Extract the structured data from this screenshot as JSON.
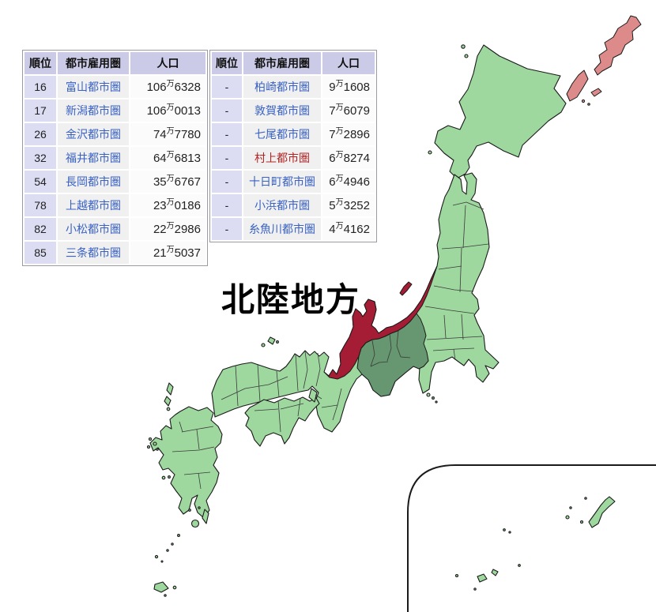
{
  "theme": {
    "japan-green": "#9ed89f",
    "chubu-green": "#669770",
    "hokuriku-red": "#a51c35",
    "disputed-pink": "#dd8a8a",
    "coast": "#1a1a1a",
    "pref-line": "#3a3a3a",
    "table-header-bg": "#cbcbe8",
    "table-rank-bg": "#dcdcf2",
    "table-name-bg": "#f0f0f0",
    "table-pop-bg": "#fbfbfb",
    "table-border": "#9a9aa5",
    "link-blue": "#3a62c4",
    "link-red": "#b32424",
    "text-dark": "#222222",
    "title-color": "#000000"
  },
  "title": {
    "text": "北陸地方"
  },
  "tables": {
    "headers": [
      "順位",
      "都市雇用圏",
      "人口"
    ],
    "population_unit": "万",
    "left": {
      "rows": [
        {
          "rank": "16",
          "name": "富山都市圏",
          "pop_man": "106",
          "pop_rest": "6328",
          "red": false
        },
        {
          "rank": "17",
          "name": "新潟都市圏",
          "pop_man": "106",
          "pop_rest": "0013",
          "red": false
        },
        {
          "rank": "26",
          "name": "金沢都市圏",
          "pop_man": "74",
          "pop_rest": "7780",
          "red": false
        },
        {
          "rank": "32",
          "name": "福井都市圏",
          "pop_man": "64",
          "pop_rest": "6813",
          "red": false
        },
        {
          "rank": "54",
          "name": "長岡都市圏",
          "pop_man": "35",
          "pop_rest": "6767",
          "red": false
        },
        {
          "rank": "78",
          "name": "上越都市圏",
          "pop_man": "23",
          "pop_rest": "0186",
          "red": false
        },
        {
          "rank": "82",
          "name": "小松都市圏",
          "pop_man": "22",
          "pop_rest": "2986",
          "red": false
        },
        {
          "rank": "85",
          "name": "三条都市圏",
          "pop_man": "21",
          "pop_rest": "5037",
          "red": false
        }
      ]
    },
    "right": {
      "rows": [
        {
          "rank": "-",
          "name": "柏崎都市圏",
          "pop_man": "9",
          "pop_rest": "1608",
          "red": false
        },
        {
          "rank": "-",
          "name": "敦賀都市圏",
          "pop_man": "7",
          "pop_rest": "6079",
          "red": false
        },
        {
          "rank": "-",
          "name": "七尾都市圏",
          "pop_man": "7",
          "pop_rest": "2896",
          "red": false
        },
        {
          "rank": "-",
          "name": "村上都市圏",
          "pop_man": "6",
          "pop_rest": "8274",
          "red": true
        },
        {
          "rank": "-",
          "name": "十日町都市圏",
          "pop_man": "6",
          "pop_rest": "4946",
          "red": false
        },
        {
          "rank": "-",
          "name": "小浜都市圏",
          "pop_man": "5",
          "pop_rest": "3252",
          "red": false
        },
        {
          "rank": "-",
          "name": "糸魚川都市圏",
          "pop_man": "4",
          "pop_rest": "4162",
          "red": false
        }
      ]
    }
  }
}
